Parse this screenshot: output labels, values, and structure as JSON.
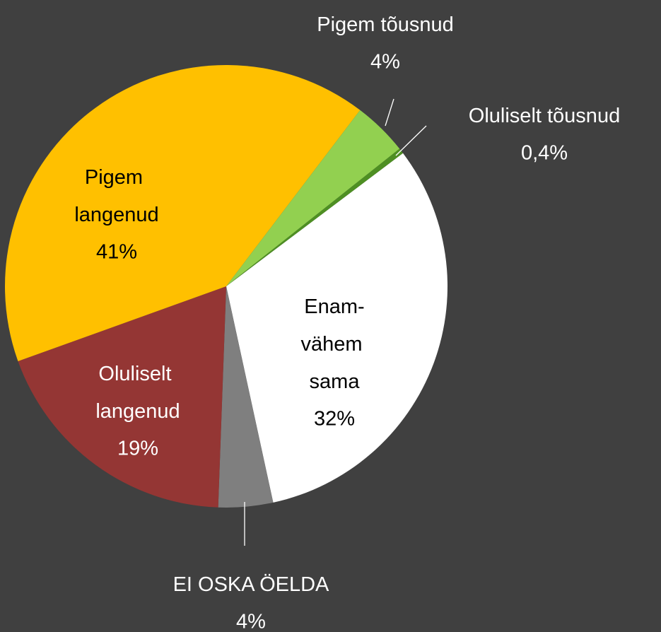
{
  "chart_data": {
    "type": "pie",
    "categories": [
      "Enam-vähem sama",
      "EI OSKA ÖELDA",
      "Oluliselt langenud",
      "Pigem langenud",
      "Pigem tõusnud",
      "Oluliselt tõusnud"
    ],
    "values": [
      32,
      4,
      19,
      41,
      4,
      0.4
    ],
    "value_labels": [
      "32%",
      "4%",
      "19%",
      "41%",
      "4%",
      "0,4%"
    ],
    "colors": [
      "#ffffff",
      "#7f7f7f",
      "#943634",
      "#ffc000",
      "#92d050",
      "#4e8f23"
    ]
  }
}
